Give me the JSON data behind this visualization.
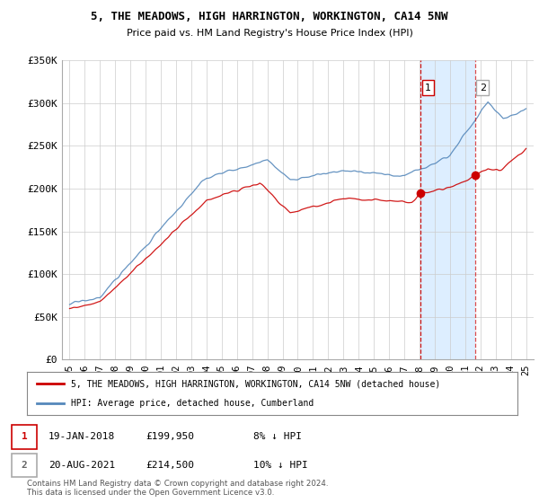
{
  "title": "5, THE MEADOWS, HIGH HARRINGTON, WORKINGTON, CA14 5NW",
  "subtitle": "Price paid vs. HM Land Registry's House Price Index (HPI)",
  "legend_line1": "5, THE MEADOWS, HIGH HARRINGTON, WORKINGTON, CA14 5NW (detached house)",
  "legend_line2": "HPI: Average price, detached house, Cumberland",
  "footnote": "Contains HM Land Registry data © Crown copyright and database right 2024.\nThis data is licensed under the Open Government Licence v3.0.",
  "marker1_date": "19-JAN-2018",
  "marker1_price": "£199,950",
  "marker1_hpi": "8% ↓ HPI",
  "marker1_year": 2018.05,
  "marker2_date": "20-AUG-2021",
  "marker2_price": "£214,500",
  "marker2_hpi": "10% ↓ HPI",
  "marker2_year": 2021.64,
  "red_color": "#cc0000",
  "blue_color": "#5588bb",
  "shade_color": "#ddeeff",
  "ylim": [
    0,
    350000
  ],
  "xlim_start": 1994.5,
  "xlim_end": 2025.5,
  "background_color": "#ffffff",
  "grid_color": "#cccccc",
  "yticks": [
    0,
    50000,
    100000,
    150000,
    200000,
    250000,
    300000,
    350000
  ],
  "ylabels": [
    "£0",
    "£50K",
    "£100K",
    "£150K",
    "£200K",
    "£250K",
    "£300K",
    "£350K"
  ]
}
